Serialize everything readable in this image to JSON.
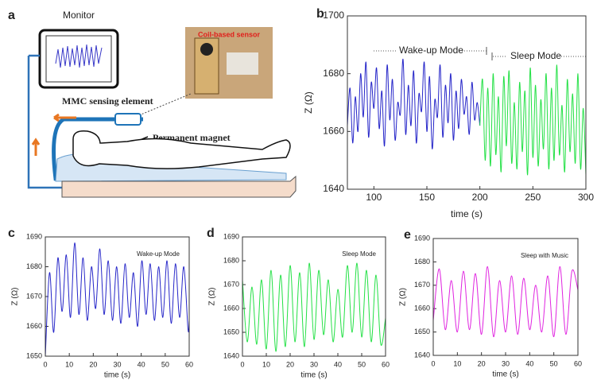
{
  "diagram": {
    "panel_label": "a",
    "labels": {
      "monitor": "Monitor",
      "sensor": "Coil-based sensor",
      "element": "MMC sensing element",
      "magnet": "Permanent magnet"
    }
  },
  "chart_data": [
    {
      "type": "line",
      "panel_label": "b",
      "xlabel": "time (s)",
      "ylabel": "Z (Ω)",
      "x": [
        75,
        77.5,
        80,
        82.5,
        85,
        87.5,
        90,
        92.5,
        95,
        97.5,
        100,
        102.5,
        105,
        107.5,
        110,
        112.5,
        115,
        117.5,
        120,
        122.5,
        125,
        127.5,
        130,
        132.5,
        135,
        137.5,
        140,
        142.5,
        145,
        147.5,
        150,
        152.5,
        155,
        157.5,
        160,
        162.5,
        165,
        167.5,
        170,
        172.5,
        175,
        177.5,
        180,
        182.5,
        185,
        187.5,
        190,
        192.5,
        195,
        197.5,
        200,
        202.5,
        205,
        207.5,
        210,
        212.5,
        215,
        217.5,
        220,
        222.5,
        225,
        227.5,
        230,
        232.5,
        235,
        237.5,
        240,
        242.5,
        245,
        247.5,
        250,
        252.5,
        255,
        257.5,
        260,
        262.5,
        265,
        267.5,
        270,
        272.5,
        275,
        277.5,
        280,
        282.5,
        285,
        287.5,
        290,
        292.5,
        295,
        297.5,
        300
      ],
      "xlim": [
        75,
        300
      ],
      "xticks": [
        100,
        150,
        200,
        250,
        300
      ],
      "ylim": [
        1640,
        1700
      ],
      "yticks": [
        1640,
        1660,
        1680,
        1700
      ],
      "series": [
        {
          "name": "Wake-up Mode",
          "color": "#2424c8",
          "values": [
            1662,
            1675,
            1656,
            1672,
            1660,
            1680,
            1665,
            1684,
            1658,
            1677,
            1668,
            1682,
            1661,
            1674,
            1655,
            1683,
            1664,
            1678,
            1657,
            1670,
            1666,
            1685,
            1659,
            1676,
            1662,
            1681,
            1656,
            1673,
            1667,
            1684,
            1660,
            1679,
            1654,
            1671,
            1665,
            1683,
            1658,
            1676,
            1663,
            1680,
            1657,
            1674,
            1661,
            1678,
            1666,
            1672,
            1659,
            1677,
            1664,
            1670,
            1662,
            null,
            null,
            null,
            null,
            null,
            null,
            null,
            null,
            null,
            null,
            null,
            null,
            null,
            null,
            null,
            null,
            null,
            null,
            null,
            null,
            null,
            null,
            null,
            null,
            null,
            null,
            null,
            null,
            null,
            null,
            null,
            null,
            null,
            null,
            null,
            null,
            null,
            null,
            null,
            null
          ]
        },
        {
          "name": "Sleep Mode",
          "color": "#22e044",
          "values": [
            null,
            null,
            null,
            null,
            null,
            null,
            null,
            null,
            null,
            null,
            null,
            null,
            null,
            null,
            null,
            null,
            null,
            null,
            null,
            null,
            null,
            null,
            null,
            null,
            null,
            null,
            null,
            null,
            null,
            null,
            null,
            null,
            null,
            null,
            null,
            null,
            null,
            null,
            null,
            null,
            null,
            null,
            null,
            null,
            null,
            null,
            null,
            null,
            null,
            null,
            1662,
            1678,
            1650,
            1675,
            1648,
            1680,
            1652,
            1672,
            1646,
            1679,
            1655,
            1681,
            1649,
            1670,
            1647,
            1677,
            1653,
            1674,
            1645,
            1682,
            1651,
            1676,
            1648,
            1671,
            1654,
            1680,
            1647,
            1675,
            1650,
            1683,
            1652,
            1669,
            1646,
            1678,
            1653,
            1673,
            1649,
            1680,
            1647,
            1668,
            1645
          ]
        }
      ]
    },
    {
      "type": "line",
      "panel_label": "c",
      "xlabel": "time (s)",
      "ylabel": "Z (Ω)",
      "x": [
        0,
        1.75,
        3.5,
        5.25,
        7,
        8.75,
        10.5,
        12.25,
        14,
        15.75,
        17.5,
        19.25,
        21,
        22.75,
        24.5,
        26.25,
        28,
        29.75,
        31.5,
        33.25,
        35,
        36.75,
        38.5,
        40.25,
        42,
        43.75,
        45.5,
        47.25,
        49,
        50.75,
        52.5,
        54.25,
        56,
        57.75,
        59.5,
        60
      ],
      "xlim": [
        0,
        60
      ],
      "xticks": [
        0,
        10,
        20,
        30,
        40,
        50,
        60
      ],
      "ylim": [
        1650,
        1690
      ],
      "yticks": [
        1650,
        1660,
        1670,
        1680,
        1690
      ],
      "series": [
        {
          "name": "Wake-up Mode",
          "color": "#2424c8",
          "values": [
            1650,
            1678,
            1658,
            1683,
            1665,
            1684,
            1663,
            1688,
            1664,
            1683,
            1662,
            1680,
            1666,
            1686,
            1664,
            1682,
            1662,
            1680,
            1661,
            1681,
            1663,
            1678,
            1660,
            1682,
            1664,
            1681,
            1662,
            1680,
            1663,
            1682,
            1661,
            1681,
            1663,
            1680,
            1659,
            1662
          ]
        }
      ]
    },
    {
      "type": "line",
      "panel_label": "d",
      "xlabel": "time (s)",
      "ylabel": "Z (Ω)",
      "x": [
        0,
        2,
        4,
        6,
        8,
        10,
        12,
        14,
        16,
        18,
        20,
        22,
        24,
        26,
        28,
        30,
        32,
        34,
        36,
        38,
        40,
        42,
        44,
        46,
        48,
        50,
        52,
        54,
        56,
        58,
        60
      ],
      "xlim": [
        0,
        60
      ],
      "xticks": [
        0,
        10,
        20,
        30,
        40,
        50,
        60
      ],
      "ylim": [
        1640,
        1690
      ],
      "yticks": [
        1640,
        1650,
        1660,
        1670,
        1680,
        1690
      ],
      "series": [
        {
          "name": "Sleep Mode",
          "color": "#22e044",
          "values": [
            1672,
            1646,
            1669,
            1645,
            1672,
            1643,
            1676,
            1642,
            1674,
            1644,
            1678,
            1646,
            1675,
            1644,
            1679,
            1647,
            1676,
            1649,
            1672,
            1646,
            1668,
            1648,
            1678,
            1650,
            1679,
            1648,
            1676,
            1646,
            1674,
            1645,
            1656
          ]
        }
      ]
    },
    {
      "type": "line",
      "panel_label": "e",
      "xlabel": "time (s)",
      "ylabel": "Z (Ω)",
      "x": [
        0,
        2.5,
        5,
        7.5,
        10,
        12.5,
        15,
        17.5,
        20,
        22.5,
        25,
        27.5,
        30,
        32.5,
        35,
        37.5,
        40,
        42.5,
        45,
        47.5,
        50,
        52.5,
        55,
        57.5,
        60
      ],
      "xlim": [
        0,
        60
      ],
      "xticks": [
        0,
        10,
        20,
        30,
        40,
        50,
        60
      ],
      "ylim": [
        1640,
        1690
      ],
      "yticks": [
        1640,
        1650,
        1660,
        1670,
        1680,
        1690
      ],
      "series": [
        {
          "name": "Sleep with Music",
          "color": "#e024e0",
          "values": [
            1655,
            1677,
            1651,
            1672,
            1650,
            1676,
            1651,
            1675,
            1649,
            1678,
            1648,
            1672,
            1650,
            1674,
            1649,
            1673,
            1651,
            1670,
            1650,
            1674,
            1648,
            1678,
            1649,
            1676,
            1668
          ]
        }
      ]
    }
  ]
}
